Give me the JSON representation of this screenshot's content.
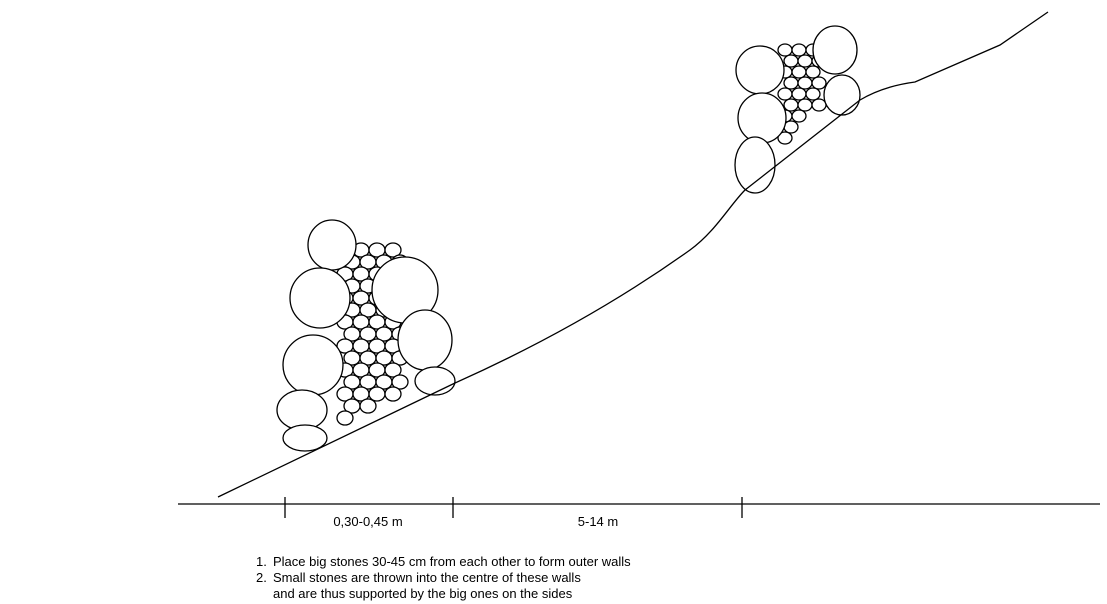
{
  "dimensions": [
    {
      "label": "0,30-0,45 m"
    },
    {
      "label": "5-14 m"
    }
  ],
  "notes": [
    {
      "number": "1.",
      "lines": [
        "Place big stones 30-45 cm from each other to form outer walls"
      ]
    },
    {
      "number": "2.",
      "lines": [
        "Small stones are thrown into the centre of these walls",
        "and are thus supported by the big ones on the sides"
      ]
    }
  ]
}
